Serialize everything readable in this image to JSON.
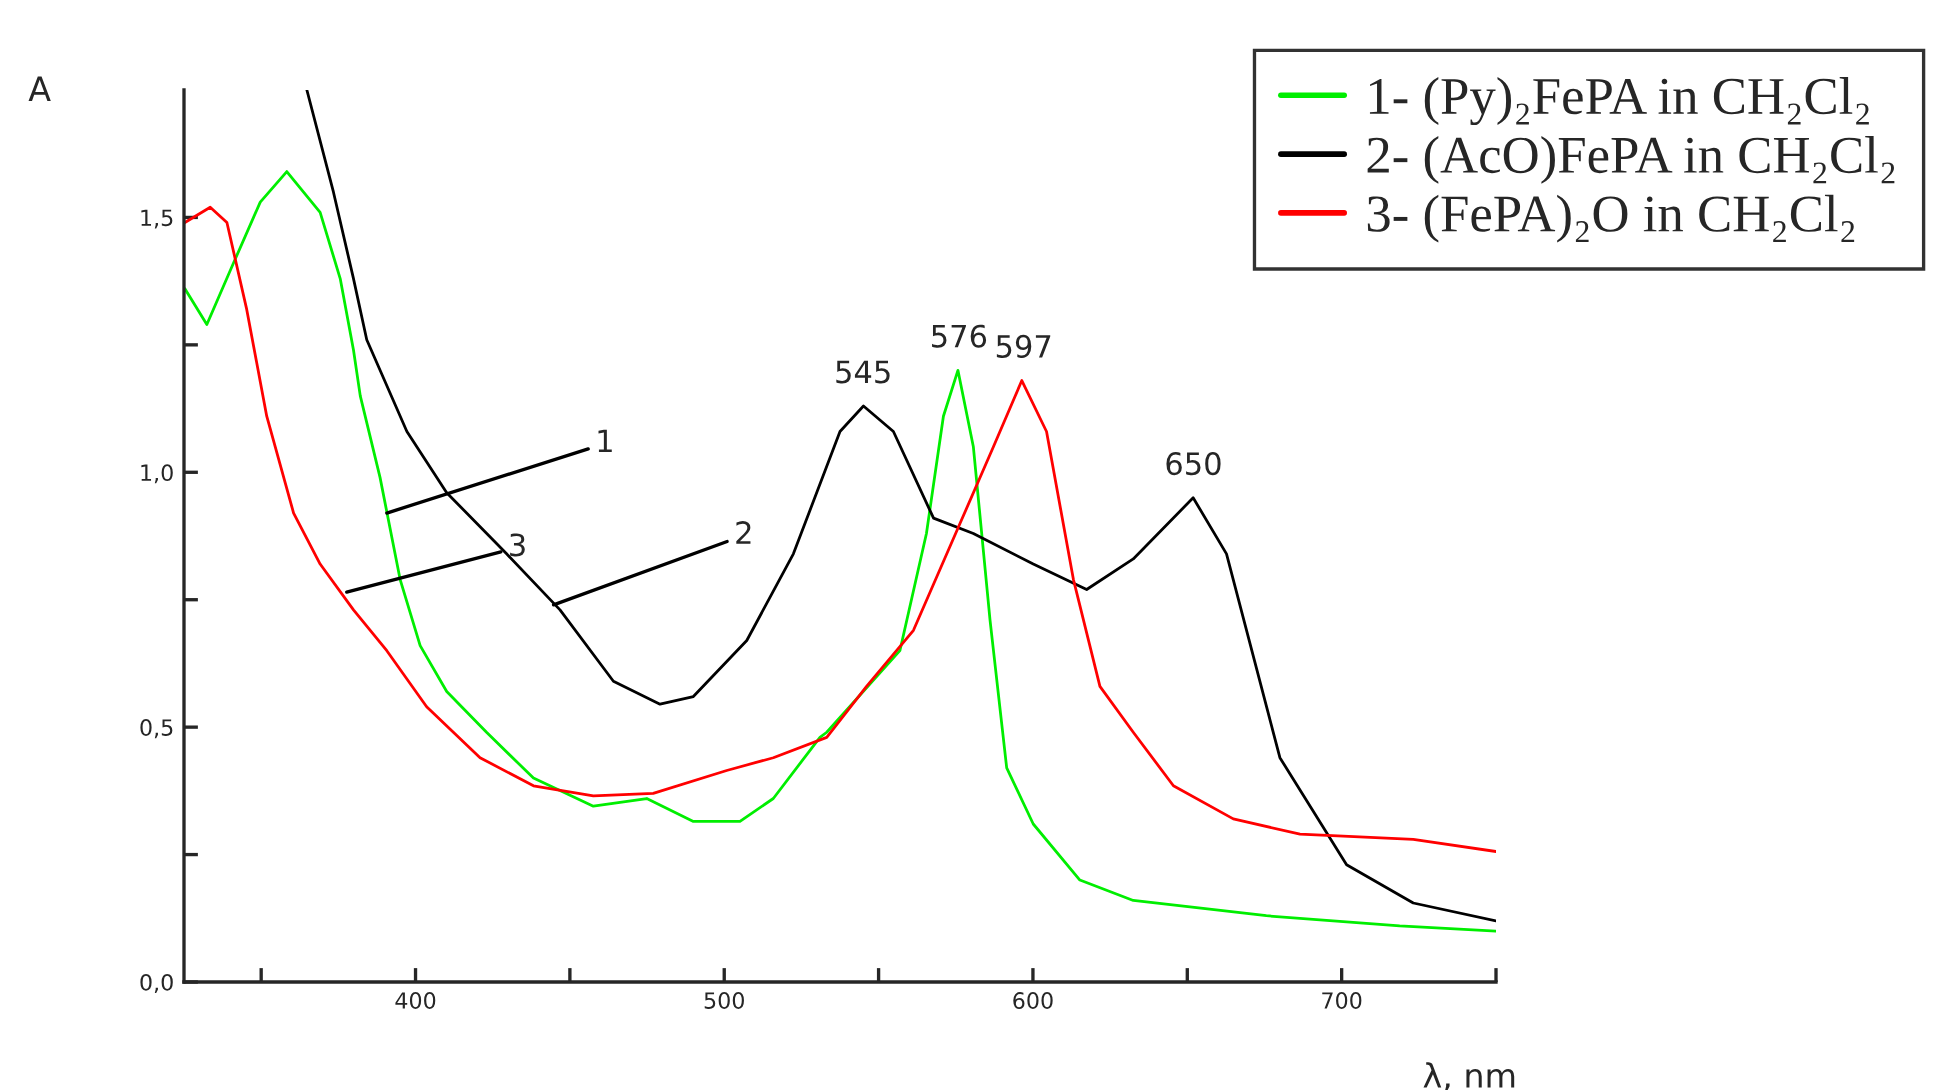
{
  "chart_data": {
    "type": "line",
    "xlabel": "λ, nm",
    "ylabel": "A",
    "xlim": [
      325,
      750
    ],
    "ylim": [
      0,
      1.75
    ],
    "xticks": [
      {
        "value": 350,
        "label": null
      },
      400,
      {
        "value": 450,
        "label": null
      },
      500,
      {
        "value": 550,
        "label": null
      },
      600,
      {
        "value": 650,
        "label": null
      },
      700,
      {
        "value": 750,
        "label": null
      }
    ],
    "yticks": [
      {
        "value": 0,
        "label": "0,0"
      },
      {
        "value": 0.25,
        "label": null
      },
      {
        "value": 0.5,
        "label": "0,5"
      },
      {
        "value": 0.75,
        "label": null
      },
      {
        "value": 1.0,
        "label": "1,0"
      },
      {
        "value": 1.25,
        "label": null
      },
      {
        "value": 1.5,
        "label": "1,5"
      }
    ],
    "grid": false,
    "legend": "top right",
    "marker": "none",
    "line_style": "solid",
    "series": [
      {
        "name": "1- (Py)₂FePA in CH₂Cl₂",
        "color": "#00ee00",
        "x": [
          325.3,
          332.4,
          341,
          349.7,
          358.3,
          369.1,
          375.6,
          379.9,
          382.1,
          388.5,
          395,
          401.5,
          410.1,
          423,
          438.2,
          457.6,
          474.9,
          490,
          505.1,
          515.9,
          531,
          533.2,
          556.9,
          565.5,
          571,
          575.7,
          580.7,
          586.1,
          591.5,
          600.1,
          615.2,
          632.5,
          675.6,
          718.8,
          750
        ],
        "values": [
          1.36,
          1.29,
          1.41,
          1.53,
          1.59,
          1.51,
          1.38,
          1.24,
          1.15,
          0.99,
          0.79,
          0.66,
          0.57,
          0.49,
          0.4,
          0.345,
          0.36,
          0.315,
          0.315,
          0.36,
          0.48,
          0.49,
          0.65,
          0.88,
          1.11,
          1.2,
          1.05,
          0.71,
          0.42,
          0.31,
          0.2,
          0.16,
          0.13,
          0.11,
          0.1
        ]
      },
      {
        "name": "2- (AcO)FePA in CH₂Cl₂",
        "color": "#000000",
        "x": [
          364.8,
          373.4,
          379.9,
          384.2,
          397.2,
          410.1,
          429.5,
          446.8,
          464.1,
          479.2,
          490,
          507.3,
          522.4,
          537.5,
          545.1,
          554.8,
          567.8,
          580.7,
          600.1,
          617.4,
          632.5,
          651.9,
          662.7,
          680,
          701.6,
          723.2,
          750
        ],
        "values": [
          1.75,
          1.55,
          1.38,
          1.26,
          1.08,
          0.96,
          0.84,
          0.73,
          0.59,
          0.545,
          0.56,
          0.67,
          0.84,
          1.08,
          1.13,
          1.08,
          0.91,
          0.88,
          0.82,
          0.77,
          0.83,
          0.95,
          0.84,
          0.44,
          0.23,
          0.155,
          0.12
        ]
      },
      {
        "name": "3- (FePA)₂O in CH₂Cl₂",
        "color": "#ff0000",
        "x": [
          325.3,
          333.5,
          338.9,
          345.3,
          351.8,
          360.5,
          369.1,
          379.9,
          390.7,
          403.6,
          420.9,
          438.2,
          457.6,
          477,
          500.8,
          515.9,
          533.2,
          546.1,
          561.3,
          576.4,
          587.2,
          596.4,
          604.4,
          613.1,
          621.7,
          632.5,
          645.5,
          664.9,
          686.5,
          723.2,
          750
        ],
        "values": [
          1.49,
          1.52,
          1.49,
          1.32,
          1.11,
          0.92,
          0.82,
          0.73,
          0.65,
          0.54,
          0.44,
          0.385,
          0.365,
          0.37,
          0.415,
          0.44,
          0.48,
          0.58,
          0.69,
          0.9,
          1.05,
          1.18,
          1.08,
          0.79,
          0.58,
          0.49,
          0.385,
          0.32,
          0.29,
          0.28,
          0.256
        ]
      }
    ],
    "annotations": [
      {
        "text": "545",
        "x": 545,
        "y": 1.13
      },
      {
        "text": "576",
        "x": 576,
        "y": 1.2
      },
      {
        "text": "597",
        "x": 597,
        "y": 1.18
      },
      {
        "text": "650",
        "x": 652,
        "y": 0.95
      },
      {
        "text": "1",
        "x": 390.7,
        "y": 0.92
      },
      {
        "text": "2",
        "x": 444.7,
        "y": 0.74
      },
      {
        "text": "3",
        "x": 377.7,
        "y": 0.765
      }
    ]
  }
}
